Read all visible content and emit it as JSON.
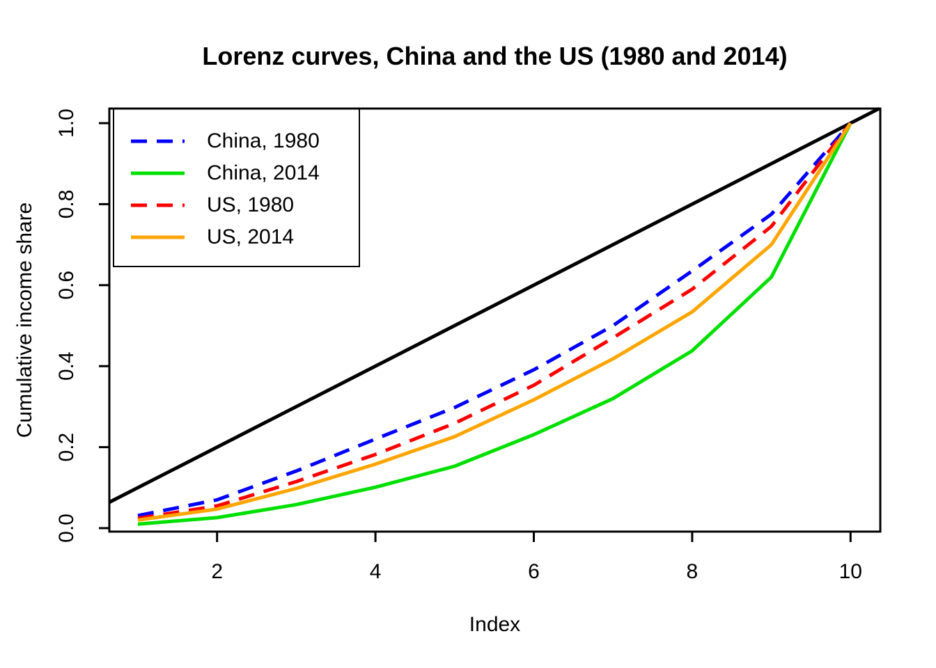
{
  "title": "Lorenz curves, China and the US (1980 and 2014)",
  "chart_data": {
    "type": "line",
    "title": "Lorenz curves, China and the US (1980 and 2014)",
    "xlabel": "Index",
    "ylabel": "Cumulative income share",
    "x": [
      1,
      2,
      3,
      4,
      5,
      6,
      7,
      8,
      9,
      10
    ],
    "x_ticks": [
      "2",
      "4",
      "6",
      "8",
      "10"
    ],
    "x_tick_values": [
      2,
      4,
      6,
      8,
      10
    ],
    "y_ticks": [
      "0.0",
      "0.2",
      "0.4",
      "0.6",
      "0.8",
      "1.0"
    ],
    "y_tick_values": [
      0.0,
      0.2,
      0.4,
      0.6,
      0.8,
      1.0
    ],
    "xlim": [
      0.64,
      10.36
    ],
    "ylim": [
      -0.01,
      1.04
    ],
    "grid": false,
    "legend_position": "top-left",
    "equality_line": {
      "name": "perfect-equality-line",
      "color": "#000000",
      "from": [
        0.64,
        0.064
      ],
      "to": [
        10.36,
        1.036
      ]
    },
    "series": [
      {
        "name": "China, 1980",
        "color": "#0000FF",
        "dash": true,
        "values": [
          0.031,
          0.07,
          0.141,
          0.22,
          0.298,
          0.391,
          0.5,
          0.635,
          0.775,
          1.0
        ]
      },
      {
        "name": "China, 2014",
        "color": "#00E000",
        "dash": false,
        "values": [
          0.01,
          0.026,
          0.058,
          0.101,
          0.153,
          0.231,
          0.32,
          0.438,
          0.62,
          1.0
        ]
      },
      {
        "name": "US, 1980",
        "color": "#FF0000",
        "dash": true,
        "values": [
          0.024,
          0.055,
          0.115,
          0.182,
          0.259,
          0.353,
          0.47,
          0.59,
          0.745,
          1.0
        ]
      },
      {
        "name": "US, 2014",
        "color": "#FFA500",
        "dash": false,
        "values": [
          0.02,
          0.047,
          0.098,
          0.158,
          0.226,
          0.317,
          0.418,
          0.534,
          0.7,
          1.0
        ]
      }
    ]
  }
}
